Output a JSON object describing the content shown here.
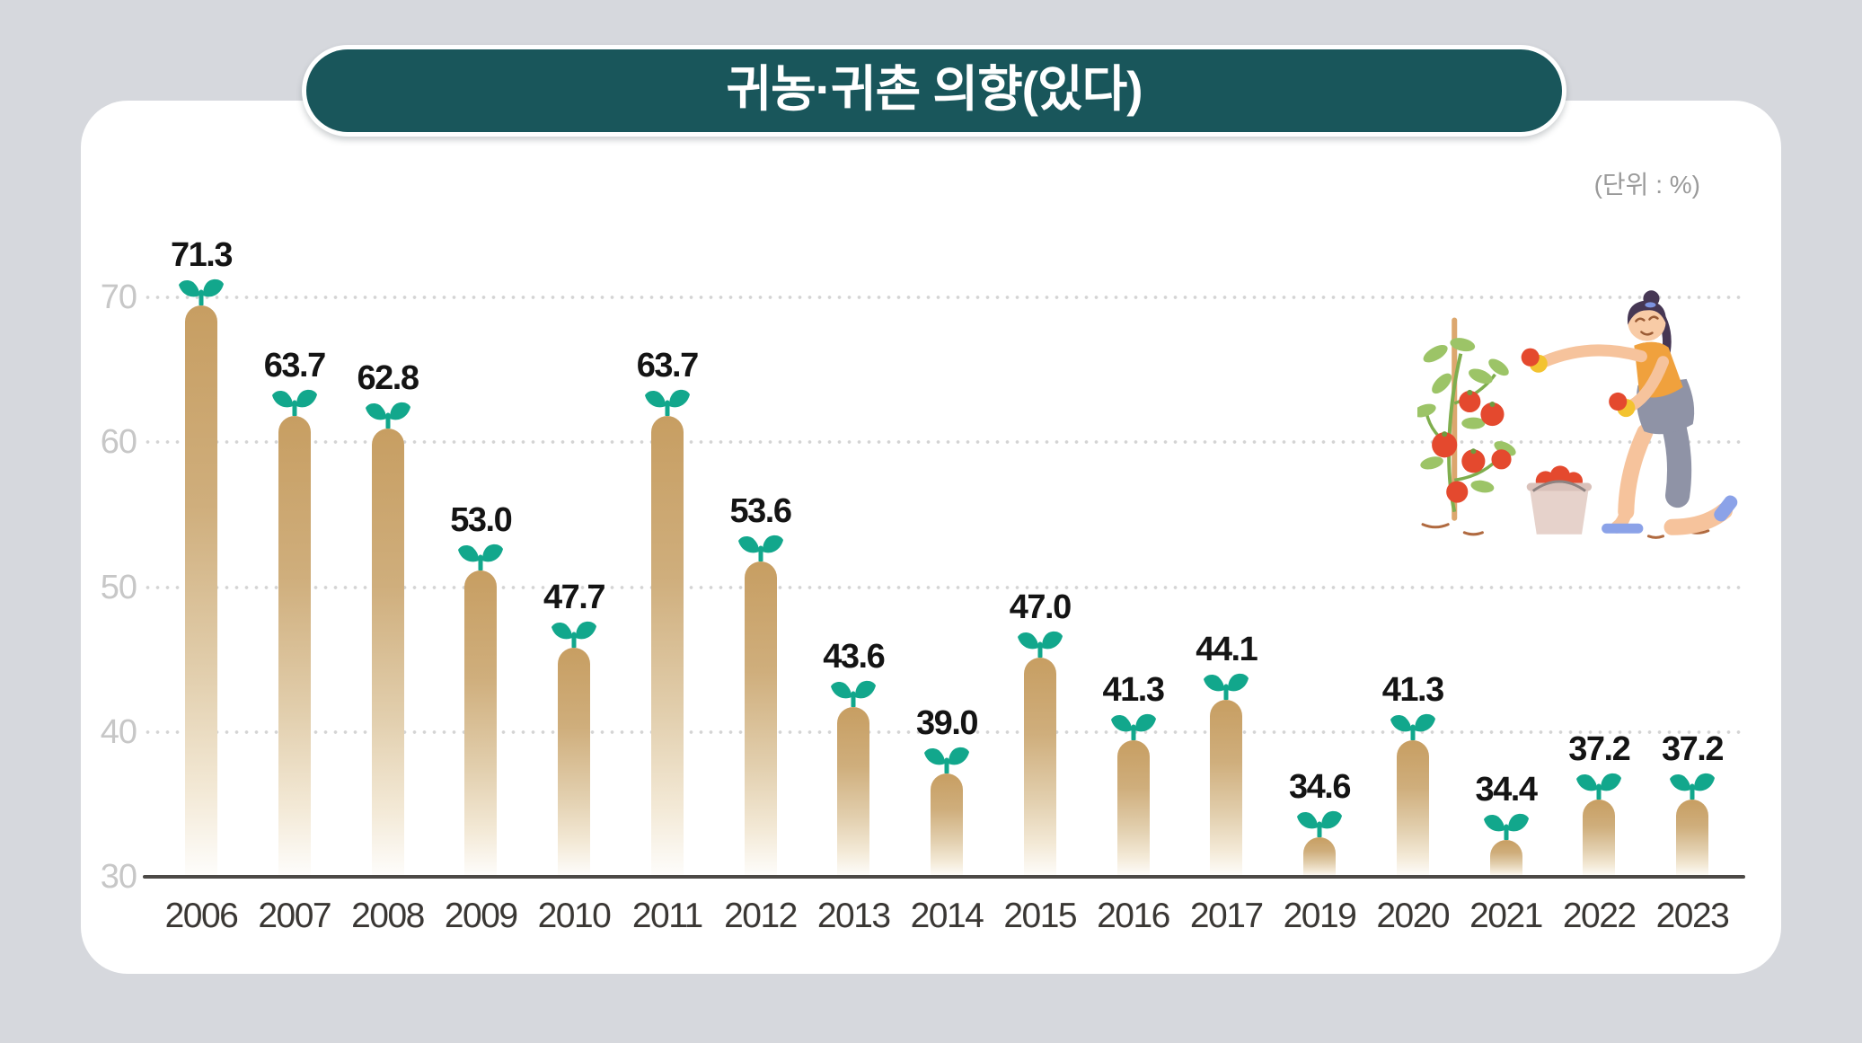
{
  "header": {
    "title": "귀농·귀촌 의향(있다)",
    "unit_label": "(단위 : %)"
  },
  "colors": {
    "background": "#d6d8dd",
    "card": "#ffffff",
    "banner": "#19565b",
    "bar_top": "#c79e62",
    "sprout_leaf": "#12a78c",
    "grid_dot": "#d4d4d4",
    "axis_line": "#4c4946",
    "ytick_text": "#c7c7c7",
    "xtick_text": "#3a3734",
    "value_text": "#141414",
    "unit_text": "#9a9a9a"
  },
  "chart_data": {
    "type": "bar",
    "title": "귀농·귀촌 의향(있다)",
    "unit": "%",
    "categories": [
      "2006",
      "2007",
      "2008",
      "2009",
      "2010",
      "2011",
      "2012",
      "2013",
      "2014",
      "2015",
      "2016",
      "2017",
      "2019",
      "2020",
      "2021",
      "2022",
      "2023"
    ],
    "values": [
      71.3,
      63.7,
      62.8,
      53.0,
      47.7,
      63.7,
      53.6,
      43.6,
      39.0,
      47.0,
      41.3,
      44.1,
      34.6,
      41.3,
      34.4,
      37.2,
      37.2
    ],
    "value_labels": true,
    "yticks": [
      30,
      40,
      50,
      60,
      70
    ],
    "ylim": [
      30,
      74
    ],
    "grid": "horizontal-dotted",
    "legend": null,
    "xlabel": "",
    "ylabel": ""
  },
  "illustration": {
    "name": "tomato-harvest-illustration",
    "description": "woman kneeling and picking tomatoes from a staked tomato plant into a bucket"
  }
}
